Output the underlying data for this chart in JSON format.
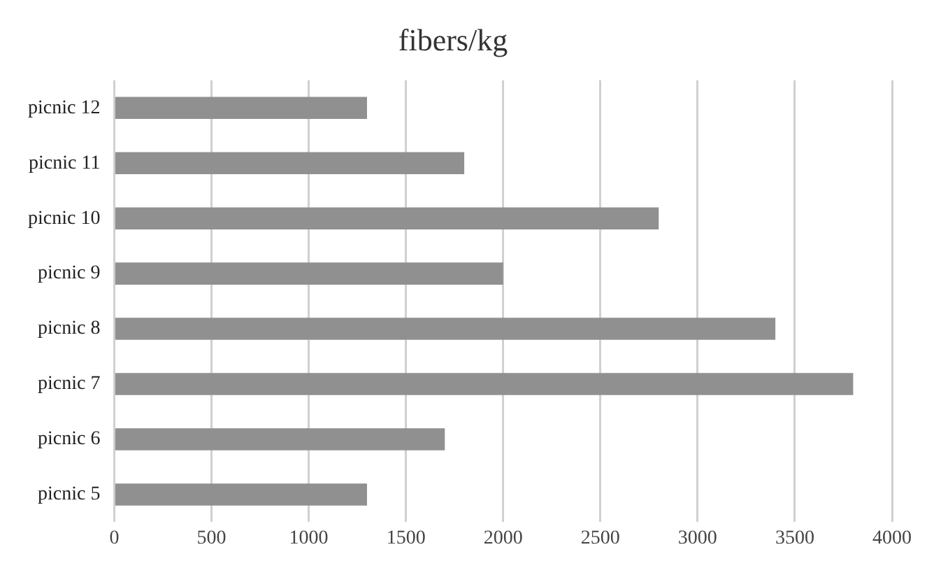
{
  "chart_data": {
    "type": "bar",
    "orientation": "horizontal",
    "title": "fibers/kg",
    "categories": [
      "picnic 12",
      "picnic 11",
      "picnic 10",
      "picnic 9",
      "picnic 8",
      "picnic 7",
      "picnic 6",
      "picnic 5"
    ],
    "values": [
      1300,
      1800,
      2800,
      2000,
      3400,
      3800,
      1700,
      1300
    ],
    "color": "#909090",
    "xlim": [
      0,
      4000
    ],
    "xticks": [
      0,
      500,
      1000,
      1500,
      2000,
      2500,
      3000,
      3500,
      4000
    ],
    "grid": "x",
    "legend": false
  }
}
